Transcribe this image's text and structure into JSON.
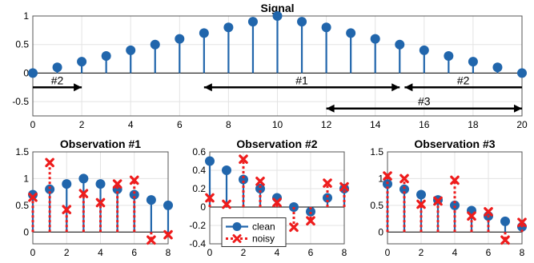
{
  "chart_data": [
    {
      "type": "stem",
      "title": "Signal",
      "x": [
        0,
        1,
        2,
        3,
        4,
        5,
        6,
        7,
        8,
        9,
        10,
        11,
        12,
        13,
        14,
        15,
        16,
        17,
        18,
        19,
        20
      ],
      "series": [
        {
          "values": [
            0,
            0.1,
            0.2,
            0.3,
            0.4,
            0.5,
            0.6,
            0.7,
            0.8,
            0.9,
            1.0,
            0.9,
            0.8,
            0.7,
            0.6,
            0.5,
            0.4,
            0.3,
            0.2,
            0.1,
            0
          ],
          "color": "#2166ac",
          "marker": "circle"
        }
      ],
      "xlim": [
        0,
        20
      ],
      "ylim": [
        -0.75,
        1
      ],
      "xticks": [
        "0",
        "2",
        "4",
        "6",
        "8",
        "10",
        "12",
        "14",
        "16",
        "18",
        "20"
      ],
      "yticks": [
        "-0.5",
        "0",
        "0.5",
        "1"
      ],
      "grid": true,
      "annotations": [
        {
          "label": "#1",
          "from": 7,
          "to": 15,
          "y": -0.25,
          "heads": "both"
        },
        {
          "label": "#2",
          "from": 0,
          "to": 2,
          "y": -0.25,
          "heads": "end"
        },
        {
          "label": "#2",
          "from": 15.2,
          "to": 20,
          "y": -0.25,
          "heads": "start"
        },
        {
          "label": "#3",
          "from": 12,
          "to": 20,
          "y": -0.62,
          "heads": "both"
        }
      ]
    },
    {
      "type": "stem",
      "title": "Observation #1",
      "x": [
        0,
        1,
        2,
        3,
        4,
        5,
        6,
        7,
        8
      ],
      "series": [
        {
          "name": "clean",
          "values": [
            0.7,
            0.8,
            0.9,
            1.0,
            0.9,
            0.8,
            0.7,
            0.6,
            0.5
          ],
          "color": "#2166ac",
          "marker": "circle"
        },
        {
          "name": "noisy",
          "values": [
            0.65,
            1.3,
            0.42,
            0.72,
            0.55,
            0.9,
            0.97,
            -0.15,
            -0.05
          ],
          "color": "#ee1c1c",
          "marker": "x"
        }
      ],
      "xlim": [
        0,
        8
      ],
      "ylim": [
        -0.22,
        1.5
      ],
      "xticks": [
        "0",
        "2",
        "4",
        "6",
        "8"
      ],
      "yticks": [
        "0",
        "0.5",
        "1",
        "1.5"
      ],
      "grid": true
    },
    {
      "type": "stem",
      "title": "Observation #2",
      "x": [
        0,
        1,
        2,
        3,
        4,
        5,
        6,
        7,
        8
      ],
      "series": [
        {
          "name": "clean",
          "values": [
            0.5,
            0.4,
            0.3,
            0.2,
            0.1,
            0,
            -0.05,
            0.1,
            0.2
          ],
          "color": "#2166ac",
          "marker": "circle"
        },
        {
          "name": "noisy",
          "values": [
            0.1,
            0.03,
            0.52,
            0.28,
            0.05,
            -0.22,
            -0.15,
            0.26,
            0.22
          ],
          "color": "#ee1c1c",
          "marker": "x"
        }
      ],
      "xlim": [
        0,
        8
      ],
      "ylim": [
        -0.4,
        0.6
      ],
      "xticks": [
        "0",
        "2",
        "4",
        "6",
        "8"
      ],
      "yticks": [
        "-0.4",
        "-0.2",
        "0",
        "0.2",
        "0.4",
        "0.6"
      ],
      "grid": true,
      "legend": {
        "entries": [
          "clean",
          "noisy"
        ],
        "placement": "lower-left"
      }
    },
    {
      "type": "stem",
      "title": "Observation #3",
      "x": [
        0,
        1,
        2,
        3,
        4,
        5,
        6,
        7,
        8
      ],
      "series": [
        {
          "name": "clean",
          "values": [
            0.9,
            0.8,
            0.7,
            0.6,
            0.5,
            0.4,
            0.3,
            0.2,
            0.1
          ],
          "color": "#2166ac",
          "marker": "circle"
        },
        {
          "name": "noisy",
          "values": [
            1.05,
            1.0,
            0.52,
            0.58,
            0.97,
            0.3,
            0.38,
            -0.15,
            0.18
          ],
          "color": "#ee1c1c",
          "marker": "x"
        }
      ],
      "xlim": [
        0,
        8
      ],
      "ylim": [
        -0.22,
        1.5
      ],
      "xticks": [
        "0",
        "2",
        "4",
        "6",
        "8"
      ],
      "yticks": [
        "0",
        "0.5",
        "1",
        "1.5"
      ],
      "grid": true
    }
  ]
}
